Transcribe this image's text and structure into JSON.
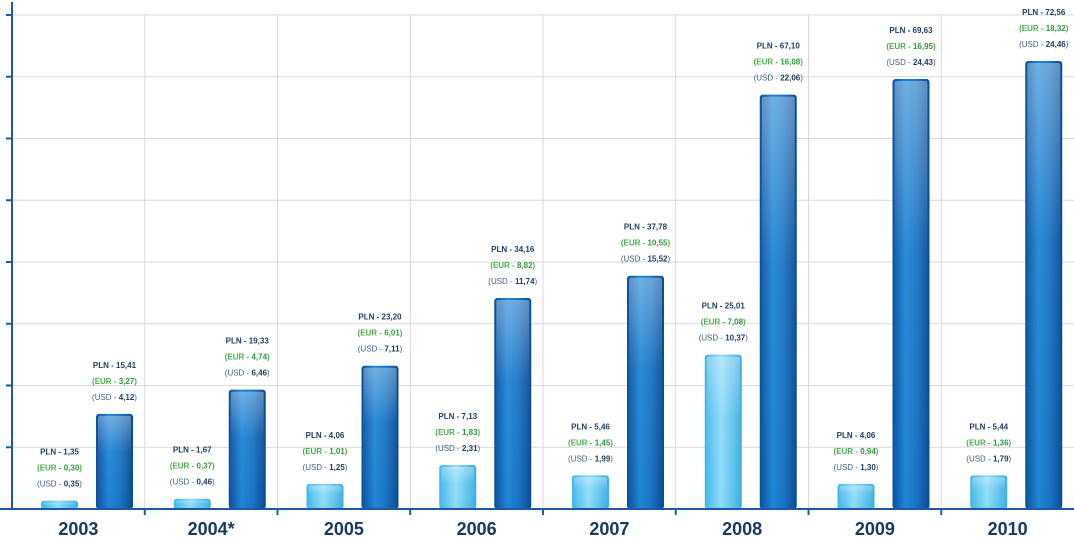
{
  "chart_data": {
    "type": "bar",
    "categories": [
      "2003",
      "2004*",
      "2005",
      "2006",
      "2007",
      "2008",
      "2009",
      "2010"
    ],
    "ylim": [
      0,
      80
    ],
    "grid": true,
    "colors": {
      "light": "#5cc8f0",
      "dark": "#1565b6",
      "axis": "#1a5aa8",
      "grid": "#d9d9d9"
    },
    "series": [
      {
        "values": [
          1.35,
          1.67,
          4.06,
          7.13,
          5.46,
          25.01,
          4.06,
          5.44
        ],
        "labels": [
          {
            "pln": "PLN - 1,35",
            "eur": "0,30",
            "usd": "0,35"
          },
          {
            "pln": "PLN - 1,67",
            "eur": "0,37",
            "usd": "0,46"
          },
          {
            "pln": "PLN - 4,06",
            "eur": "1,01",
            "usd": "1,25"
          },
          {
            "pln": "PLN - 7,13",
            "eur": "1,83",
            "usd": "2,31"
          },
          {
            "pln": "PLN - 5,46",
            "eur": "1,45",
            "usd": "1,99"
          },
          {
            "pln": "PLN - 25,01",
            "eur": "7,08",
            "usd": "10,37"
          },
          {
            "pln": "PLN - 4,06",
            "eur": "0,94",
            "usd": "1,30"
          },
          {
            "pln": "PLN - 5,44",
            "eur": "1,36",
            "usd": "1,79"
          }
        ]
      },
      {
        "values": [
          15.41,
          19.33,
          23.2,
          34.16,
          37.78,
          67.1,
          69.63,
          72.56
        ],
        "labels": [
          {
            "pln": "PLN - 15,41",
            "eur": "3,27",
            "usd": "4,12"
          },
          {
            "pln": "PLN - 19,33",
            "eur": "4,74",
            "usd": "6,46"
          },
          {
            "pln": "PLN - 23,20",
            "eur": "6,01",
            "usd": "7,11"
          },
          {
            "pln": "PLN - 34,16",
            "eur": "8,82",
            "usd": "11,74"
          },
          {
            "pln": "PLN - 37,78",
            "eur": "10,55",
            "usd": "15,52"
          },
          {
            "pln": "PLN - 67,10",
            "eur": "16,08",
            "usd": "22,06"
          },
          {
            "pln": "PLN - 69,63",
            "eur": "16,95",
            "usd": "24,43"
          },
          {
            "pln": "PLN - 72,56",
            "eur": "18,32",
            "usd": "24,46"
          }
        ]
      }
    ],
    "label_prefixes": {
      "eur": "(EUR - ",
      "usd": "(USD - ",
      "close": ")"
    }
  }
}
